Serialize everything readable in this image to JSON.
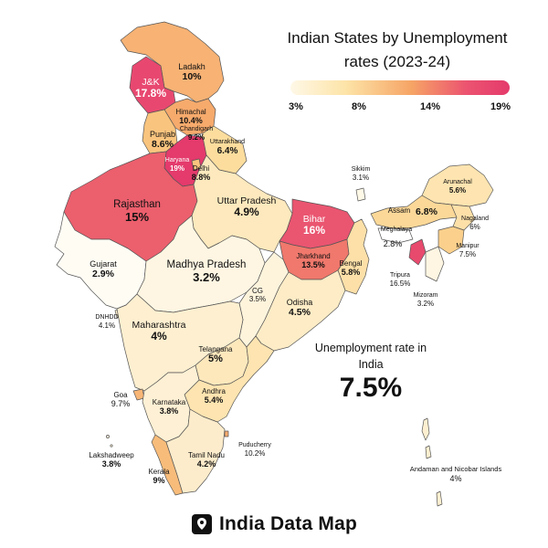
{
  "title": {
    "line1": "Indian States by Unemployment",
    "line2": "rates (2023-24)"
  },
  "legend": {
    "ticks": [
      "3%",
      "8%",
      "14%",
      "19%"
    ],
    "colors": [
      "#fef8e7",
      "#fde4a8",
      "#f6a566",
      "#e43a6c"
    ]
  },
  "national": {
    "label": "Unemployment rate in India",
    "value": "7.5%"
  },
  "brand": {
    "name": "India Data Map",
    "icon": "map-pin-icon"
  },
  "regions": {
    "ladakh": {
      "name": "Ladakh",
      "value": "10%",
      "color": "#f7b274"
    },
    "jk": {
      "name": "J&K",
      "value": "17.8%",
      "color": "#e84870"
    },
    "himachal": {
      "name": "Himachal",
      "value": "10.4%",
      "color": "#f6aa6c"
    },
    "punjab": {
      "name": "Punjab",
      "value": "8.6%",
      "color": "#f9c47e"
    },
    "chandigarh": {
      "name": "Chandigarh",
      "value": "9.2%",
      "color": "#f9c47e"
    },
    "uttarakhand": {
      "name": "Uttarakhand",
      "value": "6.4%",
      "color": "#fcdd9d"
    },
    "haryana": {
      "name": "Haryana",
      "value": "19%",
      "color": "#e43a6c"
    },
    "delhi": {
      "name": "Delhi",
      "value": "8.8%",
      "color": "#f9c47e"
    },
    "rajasthan": {
      "name": "Rajasthan",
      "value": "15%",
      "color": "#ec5f6d"
    },
    "up": {
      "name": "Uttar Pradesh",
      "value": "4.9%",
      "color": "#fde9bd"
    },
    "bihar": {
      "name": "Bihar",
      "value": "16%",
      "color": "#ea5570"
    },
    "sikkim": {
      "name": "Sikkim",
      "value": "3.1%",
      "color": "#fef8e7"
    },
    "arunachal": {
      "name": "Arunachal",
      "value": "5.6%",
      "color": "#fde4b0"
    },
    "assam": {
      "name": "Assam",
      "value": "6.8%",
      "color": "#fcd898"
    },
    "nagaland": {
      "name": "Nagaland",
      "value": "6%",
      "color": "#fde0a8"
    },
    "meghalaya": {
      "name": "Meghalaya",
      "value": "2.8%",
      "color": "#ffffff"
    },
    "manipur": {
      "name": "Manipur",
      "value": "7.5%",
      "color": "#fbd08c"
    },
    "tripura": {
      "name": "Tripura",
      "value": "16.5%",
      "color": "#e84a6e"
    },
    "mizoram": {
      "name": "Mizoram",
      "value": "3.2%",
      "color": "#fef6e2"
    },
    "jharkhand": {
      "name": "Jharkhand",
      "value": "13.5%",
      "color": "#f0786c"
    },
    "bengal": {
      "name": "Bengal",
      "value": "5.8%",
      "color": "#fde0a8"
    },
    "gujarat": {
      "name": "Gujarat",
      "value": "2.9%",
      "color": "#fffcf4"
    },
    "mp": {
      "name": "Madhya Pradesh",
      "value": "3.2%",
      "color": "#fef6e2"
    },
    "cg": {
      "name": "CG",
      "value": "3.5%",
      "color": "#fef4dc"
    },
    "odisha": {
      "name": "Odisha",
      "value": "4.5%",
      "color": "#fdecc6"
    },
    "dnhdd": {
      "name": "DNHDD",
      "value": "4.1%",
      "color": "#fdeecc"
    },
    "maharashtra": {
      "name": "Maharashtra",
      "value": "4%",
      "color": "#fdefd0"
    },
    "telangana": {
      "name": "Telangana",
      "value": "5%",
      "color": "#fde8bc"
    },
    "goa": {
      "name": "Goa",
      "value": "9.7%",
      "color": "#f8b676"
    },
    "andhra": {
      "name": "Andhra",
      "value": "5.4%",
      "color": "#fde4b0"
    },
    "karnataka": {
      "name": "Karnataka",
      "value": "3.8%",
      "color": "#fef0d4"
    },
    "puducherry": {
      "name": "Puducherry",
      "value": "10.2%",
      "color": "#f6aa6c"
    },
    "tn": {
      "name": "Tamil Nadu",
      "value": "4.2%",
      "color": "#fdeccb"
    },
    "kerala": {
      "name": "Kerala",
      "value": "9%",
      "color": "#f8bc7a"
    },
    "lakshadweep": {
      "name": "Lakshadweep",
      "value": "3.8%",
      "color": "#fef0d4"
    },
    "andaman": {
      "name": "Andaman and Nicobar Islands",
      "value": "4%",
      "color": "#fdefd0"
    }
  }
}
